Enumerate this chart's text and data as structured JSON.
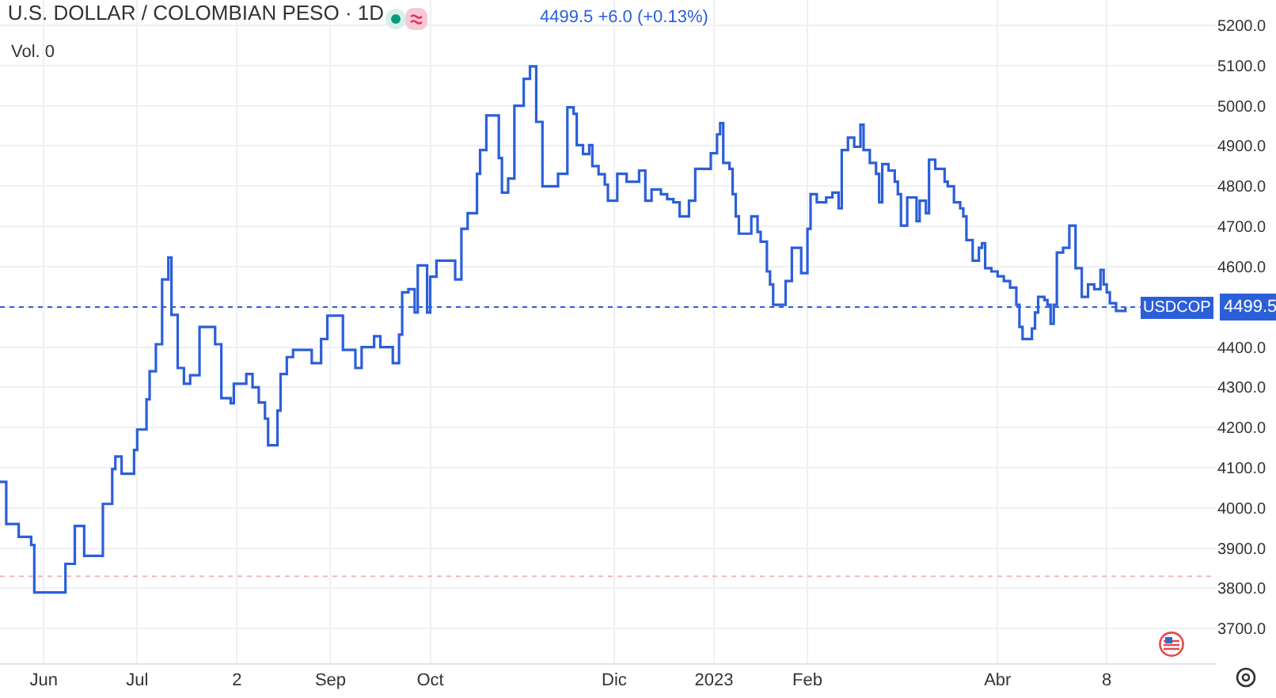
{
  "chart_data": {
    "type": "step",
    "title": "U.S. DOLLAR / COLOMBIAN PESO · 1D",
    "annotations": [
      "4499.5 +6.0 (+0.13%)",
      "Vol. 0",
      {
        "text": "4499.5",
        "y": 4499.5
      }
    ],
    "x": [
      "2022-05-18",
      "2022-05-20",
      "2022-05-24",
      "2022-05-28",
      "2022-05-29",
      "2022-06-08",
      "2022-06-11",
      "2022-06-14",
      "2022-06-20",
      "2022-06-23",
      "2022-06-24",
      "2022-06-26",
      "2022-06-30",
      "2022-07-01",
      "2022-07-04",
      "2022-07-05",
      "2022-07-07",
      "2022-07-09",
      "2022-07-11",
      "2022-07-12",
      "2022-07-14",
      "2022-07-16",
      "2022-07-18",
      "2022-07-21",
      "2022-07-26",
      "2022-07-28",
      "2022-07-31",
      "2022-08-01",
      "2022-08-05",
      "2022-08-07",
      "2022-08-09",
      "2022-08-11",
      "2022-08-12",
      "2022-08-15",
      "2022-08-16",
      "2022-08-18",
      "2022-08-20",
      "2022-08-26",
      "2022-08-29",
      "2022-08-31",
      "2022-09-05",
      "2022-09-09",
      "2022-09-11",
      "2022-09-15",
      "2022-09-17",
      "2022-09-21",
      "2022-09-23",
      "2022-09-24",
      "2022-09-26",
      "2022-09-28",
      "2022-09-29",
      "2022-10-02",
      "2022-10-03",
      "2022-10-05",
      "2022-10-11",
      "2022-10-13",
      "2022-10-15",
      "2022-10-18",
      "2022-10-19",
      "2022-10-21",
      "2022-10-25",
      "2022-10-26",
      "2022-10-28",
      "2022-10-30",
      "2022-11-02",
      "2022-11-04",
      "2022-11-06",
      "2022-11-08",
      "2022-11-13",
      "2022-11-16",
      "2022-11-18",
      "2022-11-19",
      "2022-11-21",
      "2022-11-23",
      "2022-11-24",
      "2022-11-26",
      "2022-11-28",
      "2022-11-29",
      "2022-12-02",
      "2022-12-05",
      "2022-12-09",
      "2022-12-11",
      "2022-12-13",
      "2022-12-16",
      "2022-12-18",
      "2022-12-20",
      "2022-12-22",
      "2022-12-25",
      "2022-12-27",
      "2023-01-01",
      "2023-01-03",
      "2023-01-04",
      "2023-01-05",
      "2023-01-07",
      "2023-01-08",
      "2023-01-09",
      "2023-01-10",
      "2023-01-14",
      "2023-01-16",
      "2023-01-17",
      "2023-01-19",
      "2023-01-20",
      "2023-01-21",
      "2023-01-25",
      "2023-01-27",
      "2023-01-30",
      "2023-02-01",
      "2023-02-02",
      "2023-02-04",
      "2023-02-07",
      "2023-02-09",
      "2023-02-11",
      "2023-02-12",
      "2023-02-14",
      "2023-02-16",
      "2023-02-18",
      "2023-02-19",
      "2023-02-21",
      "2023-02-23",
      "2023-02-24",
      "2023-02-25",
      "2023-02-27",
      "2023-03-01",
      "2023-03-02",
      "2023-03-03",
      "2023-03-05",
      "2023-03-08",
      "2023-03-09",
      "2023-03-11",
      "2023-03-12",
      "2023-03-14",
      "2023-03-17",
      "2023-03-18",
      "2023-03-20",
      "2023-03-22",
      "2023-03-23",
      "2023-03-24",
      "2023-03-26",
      "2023-03-28",
      "2023-03-29",
      "2023-03-30",
      "2023-04-01",
      "2023-04-03",
      "2023-04-05",
      "2023-04-07",
      "2023-04-09",
      "2023-04-10",
      "2023-04-11",
      "2023-04-14",
      "2023-04-15",
      "2023-04-16",
      "2023-04-18",
      "2023-04-19",
      "2023-04-20",
      "2023-04-21",
      "2023-04-22",
      "2023-04-24",
      "2023-04-26",
      "2023-04-28",
      "2023-04-30",
      "2023-05-02",
      "2023-05-04",
      "2023-05-06",
      "2023-05-07",
      "2023-05-08",
      "2023-05-09",
      "2023-05-11",
      "2023-05-14"
    ],
    "series": [
      {
        "color": "#2b5fd9",
        "values": [
          4065,
          3960,
          3928,
          3908,
          3790,
          3861,
          3955,
          3881,
          4010,
          4097,
          4128,
          4085,
          4144,
          4195,
          4270,
          4340,
          4407,
          4568,
          4623,
          4480,
          4348,
          4309,
          4330,
          4450,
          4407,
          4273,
          4260,
          4309,
          4333,
          4300,
          4262,
          4222,
          4156,
          4242,
          4333,
          4375,
          4393,
          4360,
          4420,
          4478,
          4393,
          4348,
          4400,
          4427,
          4400,
          4360,
          4431,
          4536,
          4544,
          4486,
          4603,
          4486,
          4575,
          4615,
          4568,
          4694,
          4733,
          4831,
          4890,
          4976,
          4870,
          4784,
          4819,
          5000,
          5067,
          5098,
          4960,
          4800,
          4831,
          4996,
          4980,
          4902,
          4880,
          4902,
          4850,
          4830,
          4804,
          4764,
          4831,
          4811,
          4839,
          4764,
          4792,
          4780,
          4768,
          4760,
          4725,
          4764,
          4843,
          4882,
          4929,
          4957,
          4858,
          4843,
          4780,
          4725,
          4682,
          4725,
          4686,
          4662,
          4588,
          4556,
          4505,
          4564,
          4647,
          4584,
          4694,
          4780,
          4760,
          4772,
          4784,
          4745,
          4890,
          4921,
          4898,
          4953,
          4890,
          4858,
          4831,
          4760,
          4855,
          4839,
          4811,
          4780,
          4702,
          4772,
          4713,
          4764,
          4733,
          4866,
          4843,
          4811,
          4800,
          4760,
          4745,
          4725,
          4666,
          4615,
          4647,
          4658,
          4596,
          4588,
          4576,
          4564,
          4548,
          4505,
          4450,
          4420,
          4446,
          4486,
          4525,
          4517,
          4505,
          4458,
          4505,
          4635,
          4647,
          4702,
          4596,
          4525,
          4556,
          4544,
          4592,
          4556,
          4536,
          4509,
          4490,
          4500
        ]
      }
    ],
    "xlim": [
      "2022-05-18",
      "2023-06-12"
    ],
    "xticks": [
      {
        "value": "2022-06-01",
        "label": "Jun"
      },
      {
        "value": "2022-07-01",
        "label": "Jul"
      },
      {
        "value": "2022-08-02",
        "label": "2"
      },
      {
        "value": "2022-09-01",
        "label": "Sep"
      },
      {
        "value": "2022-10-03",
        "label": "Oct"
      },
      {
        "value": "2022-12-01",
        "label": "Dic"
      },
      {
        "value": "2023-01-02",
        "label": "2023"
      },
      {
        "value": "2023-02-01",
        "label": "Feb"
      },
      {
        "value": "2023-04-03",
        "label": "Abr"
      },
      {
        "value": "2023-05-08",
        "label": "8"
      }
    ],
    "ylim": [
      3614,
      5263
    ],
    "yticks": [
      {
        "value": 3700,
        "label": "3700.0"
      },
      {
        "value": 3800,
        "label": "3800.0"
      },
      {
        "value": 3900,
        "label": "3900.0"
      },
      {
        "value": 4000,
        "label": "4000.0"
      },
      {
        "value": 4100,
        "label": "4100.0"
      },
      {
        "value": 4200,
        "label": "4200.0"
      },
      {
        "value": 4300,
        "label": "4300.0"
      },
      {
        "value": 4400,
        "label": "4400.0"
      },
      {
        "value": 4500,
        "label": null
      },
      {
        "value": 4600,
        "label": "4600.0"
      },
      {
        "value": 4700,
        "label": "4700.0"
      },
      {
        "value": 4800,
        "label": "4800.0"
      },
      {
        "value": 4900,
        "label": "4900.0"
      },
      {
        "value": 5000,
        "label": "5000.0"
      },
      {
        "value": 5100,
        "label": "5100.0"
      },
      {
        "value": 5200,
        "label": "5200.0"
      }
    ],
    "ref_lines": [
      {
        "axis": "y",
        "value": 4499.5,
        "label": "USDCOP",
        "color": "#2b5fd9",
        "line_style": "dotted"
      },
      {
        "axis": "y",
        "value": 3830,
        "color": "#f2b8b8",
        "line_style": "dotted"
      }
    ],
    "grid": true,
    "legend": false,
    "marker": "none",
    "line_style": "solid"
  }
}
